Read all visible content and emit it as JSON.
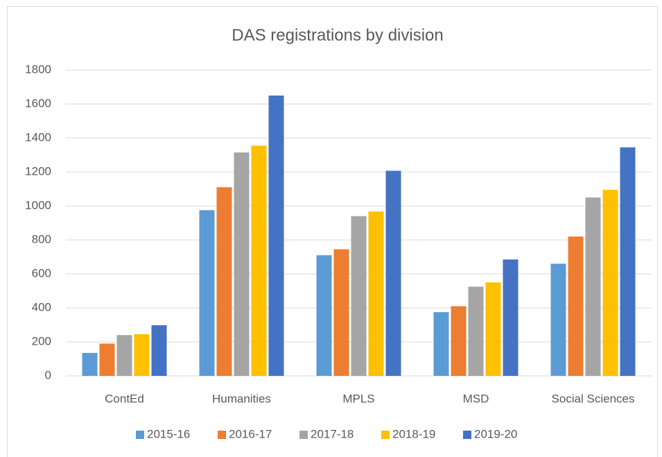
{
  "chart_data": {
    "type": "bar",
    "title": "DAS registrations by division",
    "categories": [
      "ContEd",
      "Humanities",
      "MPLS",
      "MSD",
      "Social Sciences"
    ],
    "series": [
      {
        "name": "2015-16",
        "color": "#5b9bd5",
        "values": [
          135,
          975,
          710,
          375,
          660
        ]
      },
      {
        "name": "2016-17",
        "color": "#ed7d31",
        "values": [
          190,
          1110,
          745,
          410,
          820
        ]
      },
      {
        "name": "2017-18",
        "color": "#a5a5a5",
        "values": [
          240,
          1315,
          940,
          525,
          1050
        ]
      },
      {
        "name": "2018-19",
        "color": "#ffc000",
        "values": [
          245,
          1355,
          968,
          550,
          1095
        ]
      },
      {
        "name": "2019-20",
        "color": "#4472c4",
        "values": [
          298,
          1650,
          1207,
          685,
          1345
        ]
      }
    ],
    "ylim": [
      0,
      1800
    ],
    "yticks": [
      0,
      200,
      400,
      600,
      800,
      1000,
      1200,
      1400,
      1600,
      1800
    ],
    "grid": true,
    "legend": "bottom"
  }
}
